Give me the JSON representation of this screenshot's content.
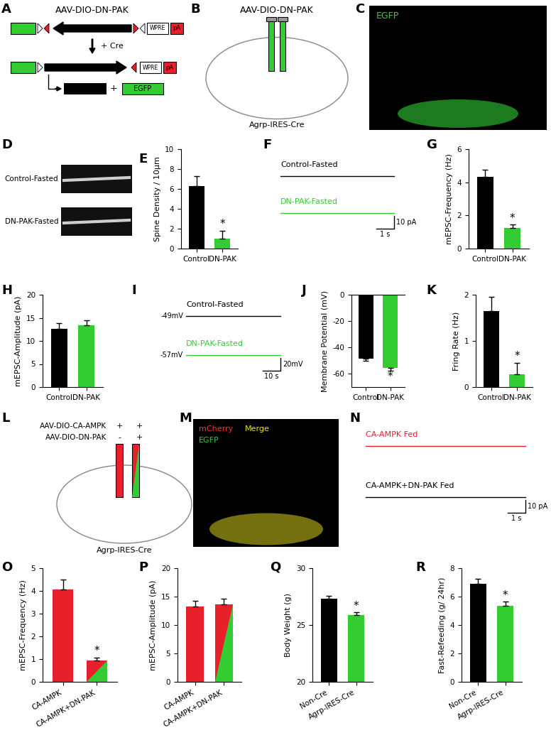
{
  "chart_data": [
    {
      "type": "bar",
      "panel": "E",
      "ylabel": "Spine Density / 10μm",
      "categories": [
        "Control",
        "DN-PAK"
      ],
      "values": [
        6.3,
        1.0
      ],
      "errors": [
        1.0,
        0.8
      ],
      "colors": [
        "#000000",
        "#33cc33"
      ],
      "ylim": [
        0,
        10
      ],
      "yticks": [
        0,
        2,
        4,
        6,
        8,
        10
      ],
      "annotation": {
        "text": "*",
        "category": "DN-PAK"
      }
    },
    {
      "type": "bar",
      "panel": "G",
      "ylabel": "mEPSC-Frequency (Hz)",
      "categories": [
        "Control",
        "DN-PAK"
      ],
      "values": [
        4.35,
        1.25
      ],
      "errors": [
        0.4,
        0.2
      ],
      "colors": [
        "#000000",
        "#33cc33"
      ],
      "ylim": [
        0,
        6
      ],
      "yticks": [
        0,
        2,
        4,
        6
      ],
      "annotation": {
        "text": "*",
        "category": "DN-PAK"
      }
    },
    {
      "type": "bar",
      "panel": "H",
      "ylabel": "mEPSC-Amplitude (pA)",
      "categories": [
        "Control",
        "DN-PAK"
      ],
      "values": [
        12.6,
        13.4
      ],
      "errors": [
        1.2,
        1.1
      ],
      "colors": [
        "#000000",
        "#33cc33"
      ],
      "ylim": [
        0,
        20
      ],
      "yticks": [
        0,
        5,
        10,
        15,
        20
      ]
    },
    {
      "type": "bar",
      "panel": "J",
      "ylabel": "Membrane Potential (mV)",
      "categories": [
        "Control",
        "DN-PAK"
      ],
      "values": [
        -48.5,
        -55.5
      ],
      "errors": [
        1.5,
        2.0
      ],
      "colors": [
        "#000000",
        "#33cc33"
      ],
      "ylim": [
        -70,
        0
      ],
      "yticks": [
        -60,
        -40,
        -20,
        0
      ],
      "annotation": {
        "text": "*",
        "category": "DN-PAK"
      }
    },
    {
      "type": "bar",
      "panel": "K",
      "ylabel": "Fring Rate (Hz)",
      "categories": [
        "Control",
        "DN-PAK"
      ],
      "values": [
        1.65,
        0.28
      ],
      "errors": [
        0.3,
        0.25
      ],
      "colors": [
        "#000000",
        "#33cc33"
      ],
      "ylim": [
        0,
        2
      ],
      "yticks": [
        0,
        1,
        2
      ],
      "annotation": {
        "text": "*",
        "category": "DN-PAK"
      }
    },
    {
      "type": "bar",
      "panel": "O",
      "ylabel": "mEPSC-Frequency (Hz)",
      "categories": [
        "CA-AMPK",
        "CA-AMPK+DN-PAK"
      ],
      "values": [
        4.05,
        0.95
      ],
      "errors": [
        0.45,
        0.12
      ],
      "colors": [
        "#e8202a",
        [
          "#e8202a",
          "#33cc33"
        ]
      ],
      "ylim": [
        0,
        5
      ],
      "yticks": [
        0,
        1,
        2,
        3,
        4,
        5
      ],
      "annotation": {
        "text": "*",
        "category": "CA-AMPK+DN-PAK"
      }
    },
    {
      "type": "bar",
      "panel": "P",
      "ylabel": "mEPSC-Amplitude (pA)",
      "categories": [
        "CA-AMPK",
        "CA-AMPK+DN-PAK"
      ],
      "values": [
        13.2,
        13.6
      ],
      "errors": [
        1.1,
        1.0
      ],
      "colors": [
        "#e8202a",
        [
          "#e8202a",
          "#33cc33"
        ]
      ],
      "ylim": [
        0,
        20
      ],
      "yticks": [
        0,
        5,
        10,
        15,
        20
      ]
    },
    {
      "type": "bar",
      "panel": "Q",
      "ylabel": "Body Weight (g)",
      "categories": [
        "Non-Cre",
        "Agrp-IRES-Cre"
      ],
      "values": [
        27.3,
        25.9
      ],
      "errors": [
        0.25,
        0.2
      ],
      "colors": [
        "#000000",
        "#33cc33"
      ],
      "ylim": [
        20,
        30
      ],
      "yticks": [
        20,
        25,
        30
      ],
      "annotation": {
        "text": "*",
        "category": "Agrp-IRES-Cre"
      }
    },
    {
      "type": "bar",
      "panel": "R",
      "ylabel": "Fast-Refeeding (g/ 24hr)",
      "categories": [
        "Non-Cre",
        "Agrp-IRES-Cre"
      ],
      "values": [
        6.9,
        5.35
      ],
      "errors": [
        0.35,
        0.3
      ],
      "colors": [
        "#000000",
        "#33cc33"
      ],
      "ylim": [
        0,
        8
      ],
      "yticks": [
        0,
        2,
        4,
        6,
        8
      ],
      "annotation": {
        "text": "*",
        "category": "Agrp-IRES-Cre"
      }
    }
  ],
  "panels": {
    "A": {
      "label": "A",
      "title": "AAV-DIO-DN-PAK",
      "wpre": "WPRE",
      "pa": "pA",
      "step": "+ Cre",
      "plus": "+",
      "product": "EGFP"
    },
    "B": {
      "label": "B",
      "title": "AAV-DIO-DN-PAK",
      "mouse": "Agrp-IRES-Cre"
    },
    "C": {
      "label": "C",
      "channel": "EGFP"
    },
    "D": {
      "label": "D",
      "rows": [
        "Control-Fasted",
        "DN-PAK-Fasted"
      ]
    },
    "F": {
      "label": "F",
      "traces": [
        "Control-Fasted",
        "DN-PAK-Fasted"
      ],
      "colors": [
        "#000000",
        "#33cc33"
      ],
      "scale_x": "1 s",
      "scale_y": "10 pA"
    },
    "I": {
      "label": "I",
      "traces": [
        "Control-Fasted",
        "DN-PAK-Fasted"
      ],
      "potentials": [
        "-49mV",
        "-57mV"
      ],
      "colors": [
        "#000000",
        "#33cc33"
      ],
      "scale_x": "10 s",
      "scale_y": "20mV"
    },
    "L": {
      "label": "L",
      "vectors": [
        "AAV-DIO-CA-AMPK",
        "AAV-DIO-DN-PAK"
      ],
      "left": [
        "+",
        "-"
      ],
      "right": [
        "+",
        "+"
      ],
      "mouse": "Agrp-IRES-Cre"
    },
    "M": {
      "label": "M",
      "channels": [
        "mCherry",
        "EGFP",
        "Merge"
      ],
      "colors": [
        "#ff3030",
        "#33cc33",
        "#e8e020"
      ]
    },
    "N": {
      "label": "N",
      "traces": [
        "CA-AMPK Fed",
        "CA-AMPK+DN-PAK Fed"
      ],
      "colors": [
        "#e8202a",
        "#000000"
      ],
      "scale_x": "1 s",
      "scale_y": "10 pA"
    }
  }
}
